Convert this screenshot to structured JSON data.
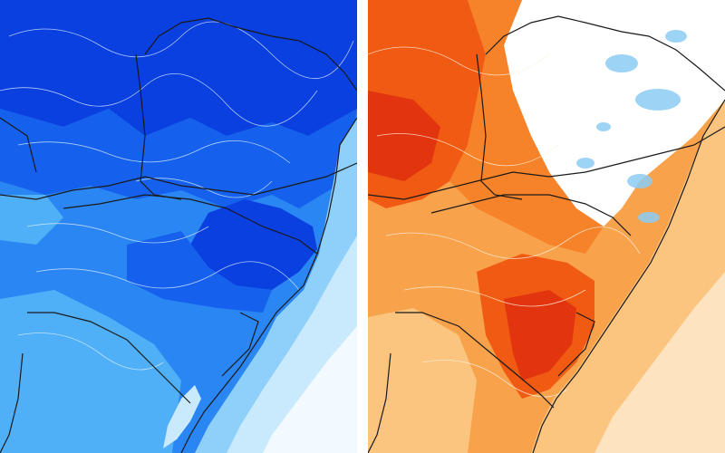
{
  "panels": [
    {
      "id": "cold",
      "palette": {
        "deep": "#0a3fe0",
        "strong": "#1560ec",
        "mid": "#2a86f2",
        "light": "#4fb0f7",
        "pale": "#8fd0fa",
        "faint": "#c9e9fc",
        "near_white": "#f2f9ff",
        "border": "#1a1a1a",
        "contour": "#d9ecff"
      }
    },
    {
      "id": "warm",
      "palette": {
        "deep": "#e2350f",
        "strong": "#f05a12",
        "mid": "#f6832a",
        "light": "#f9a24c",
        "pale": "#fbc47f",
        "faint": "#fde3bf",
        "near_white": "#ffffff",
        "anomaly_blue": "#8ccdf4",
        "border": "#1a1a1a",
        "contour": "#fff1de"
      }
    }
  ]
}
